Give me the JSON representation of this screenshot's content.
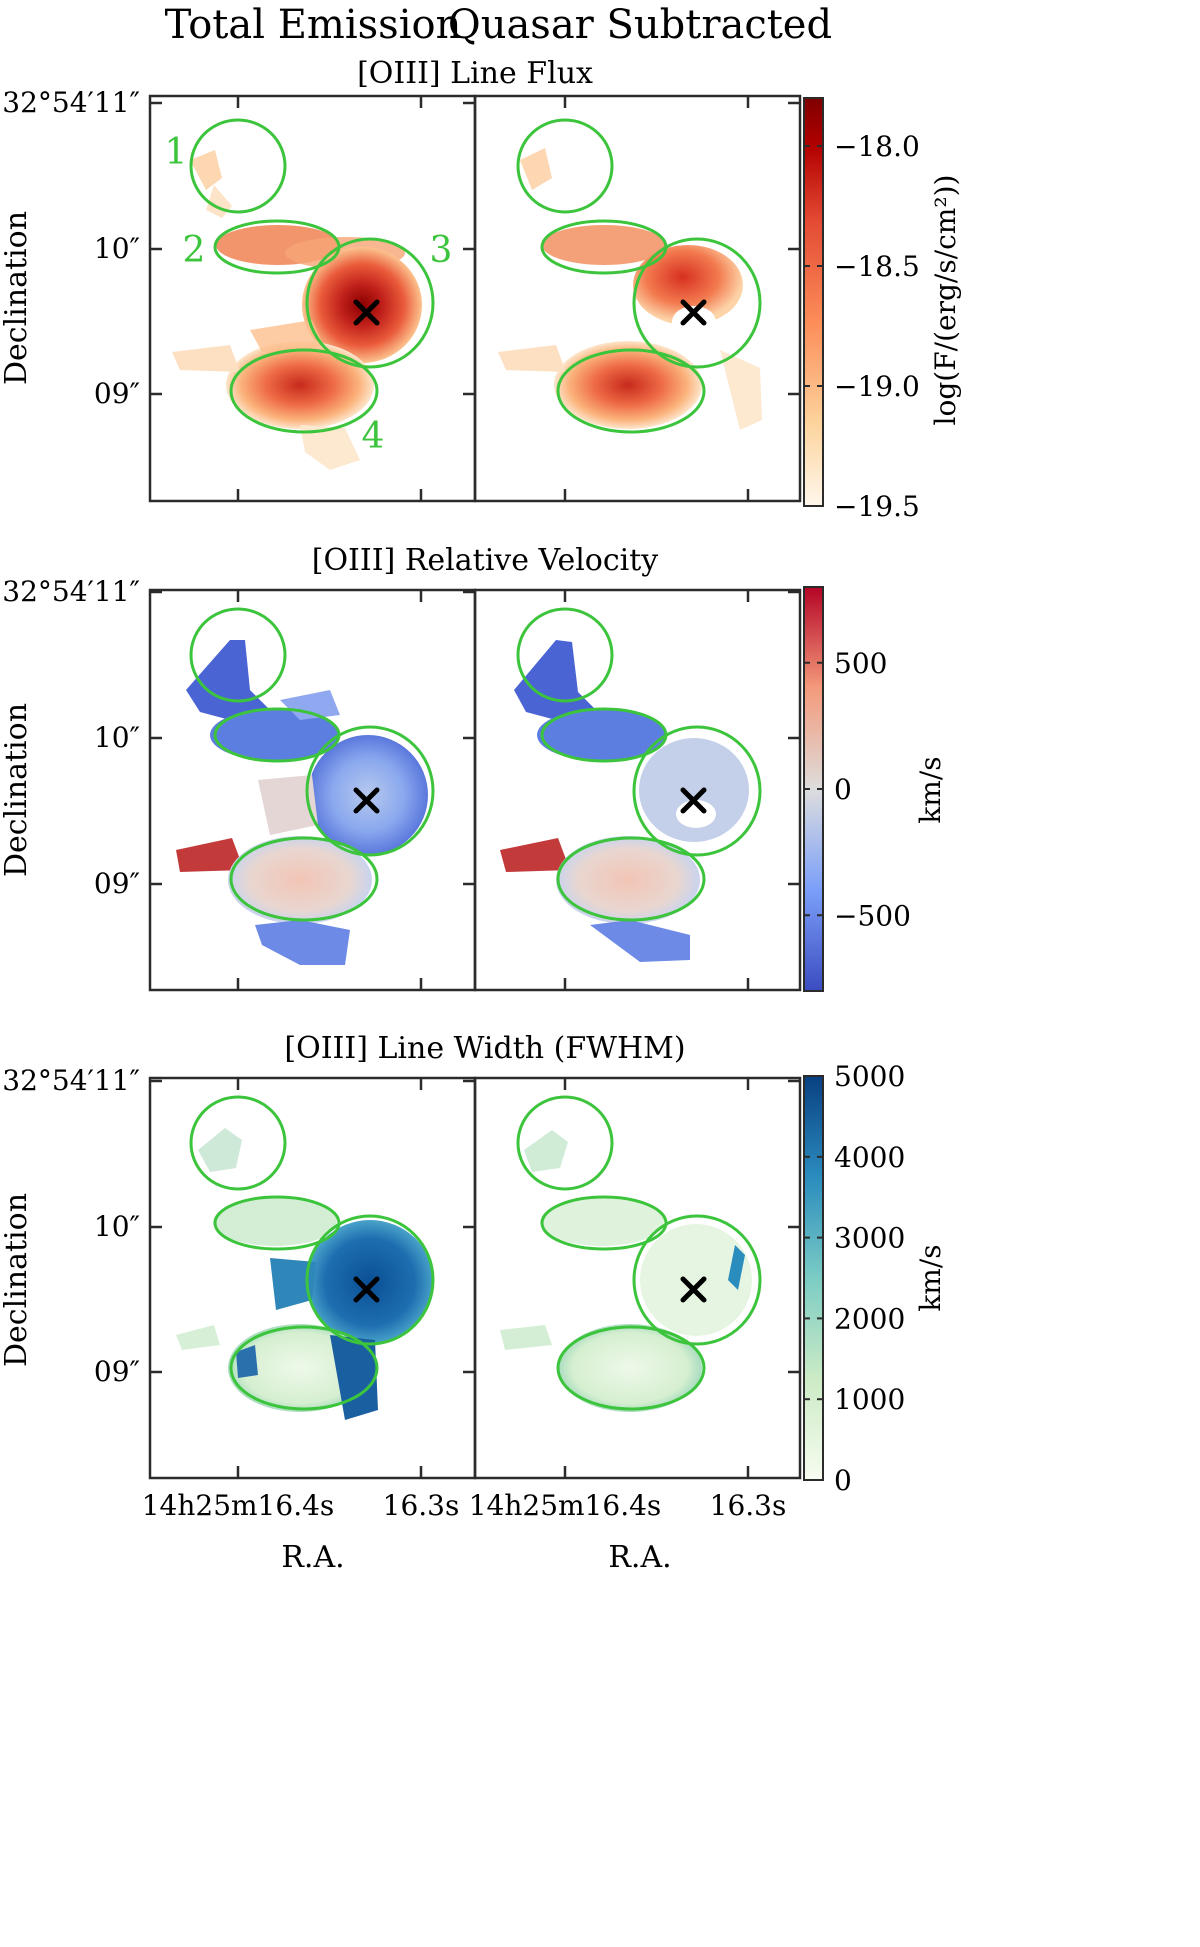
{
  "column_titles": [
    "Total Emission",
    "Quasar Subtracted"
  ],
  "row_titles": [
    "[OIII] Line Flux",
    "[OIII] Relative Velocity",
    "[OIII] Line Width (FWHM)"
  ],
  "axes": {
    "ylabel": "Declination",
    "xlabel": "R.A.",
    "dec_ticks": [
      "32°54′11″",
      "10″",
      "09″"
    ],
    "ra_ticks": [
      "14h25m16.4s",
      "16.3s"
    ]
  },
  "region_labels": [
    "1",
    "2",
    "3",
    "4"
  ],
  "colors": {
    "region": "#3cc43c",
    "quasar": "#000000",
    "axes": "#2b2b2b"
  },
  "chart_data": [
    {
      "type": "heatmap",
      "title": "[OIII] Line Flux",
      "panels": [
        "Total Emission",
        "Quasar Subtracted"
      ],
      "colormap": "OrRd",
      "colorbar_label": "log(F/(erg/s/cm²))",
      "colorbar_range": [
        -19.5,
        -17.8
      ],
      "colorbar_ticks": [
        "−18.0",
        "−18.5",
        "−19.0",
        "−19.5"
      ],
      "colorbar_tick_values": [
        -18.0,
        -18.5,
        -19.0,
        -19.5
      ],
      "xlabel": "",
      "ylabel": "Declination"
    },
    {
      "type": "heatmap",
      "title": "[OIII] Relative Velocity",
      "panels": [
        "Total Emission",
        "Quasar Subtracted"
      ],
      "colormap": "RdBu_r",
      "colorbar_label": "km/s",
      "colorbar_range": [
        -800,
        800
      ],
      "colorbar_ticks": [
        "500",
        "0",
        "−500"
      ],
      "colorbar_tick_values": [
        500,
        0,
        -500
      ],
      "xlabel": "",
      "ylabel": "Declination"
    },
    {
      "type": "heatmap",
      "title": "[OIII] Line Width (FWHM)",
      "panels": [
        "Total Emission",
        "Quasar Subtracted"
      ],
      "colormap": "GnBu",
      "colorbar_label": "km/s",
      "colorbar_range": [
        0,
        5000
      ],
      "colorbar_ticks": [
        "5000",
        "4000",
        "3000",
        "2000",
        "1000",
        "0"
      ],
      "colorbar_tick_values": [
        5000,
        4000,
        3000,
        2000,
        1000,
        0
      ],
      "xlabel": "R.A.",
      "ylabel": "Declination"
    }
  ]
}
